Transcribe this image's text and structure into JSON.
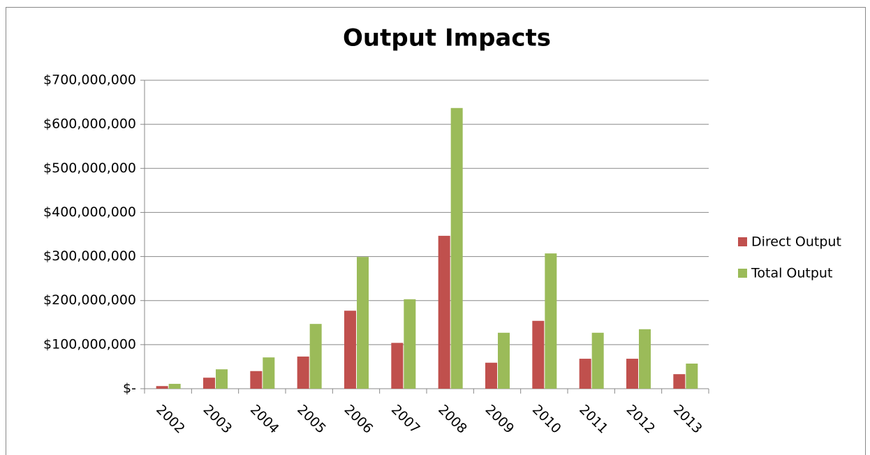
{
  "chart_data": {
    "type": "bar",
    "title": "Output Impacts",
    "categories": [
      "2002",
      "2003",
      "2004",
      "2005",
      "2006",
      "2007",
      "2008",
      "2009",
      "2010",
      "2011",
      "2012",
      "2013"
    ],
    "series": [
      {
        "name": "Direct Output",
        "color": "#c0504d",
        "values": [
          6000000,
          25000000,
          40000000,
          73000000,
          177000000,
          104000000,
          347000000,
          59000000,
          154000000,
          68000000,
          68000000,
          33000000
        ]
      },
      {
        "name": "Total Output",
        "color": "#9bbb59",
        "values": [
          11000000,
          44000000,
          71000000,
          147000000,
          299000000,
          203000000,
          637000000,
          127000000,
          307000000,
          127000000,
          135000000,
          57000000
        ]
      }
    ],
    "ylim": [
      0,
      700000000
    ],
    "yticks": [
      {
        "value": 0,
        "label": "$-"
      },
      {
        "value": 100000000,
        "label": "$100,000,000"
      },
      {
        "value": 200000000,
        "label": "$200,000,000"
      },
      {
        "value": 300000000,
        "label": "$300,000,000"
      },
      {
        "value": 400000000,
        "label": "$400,000,000"
      },
      {
        "value": 500000000,
        "label": "$500,000,000"
      },
      {
        "value": 600000000,
        "label": "$600,000,000"
      },
      {
        "value": 700000000,
        "label": "$700,000,000"
      }
    ],
    "grid": true,
    "legend": "right"
  }
}
